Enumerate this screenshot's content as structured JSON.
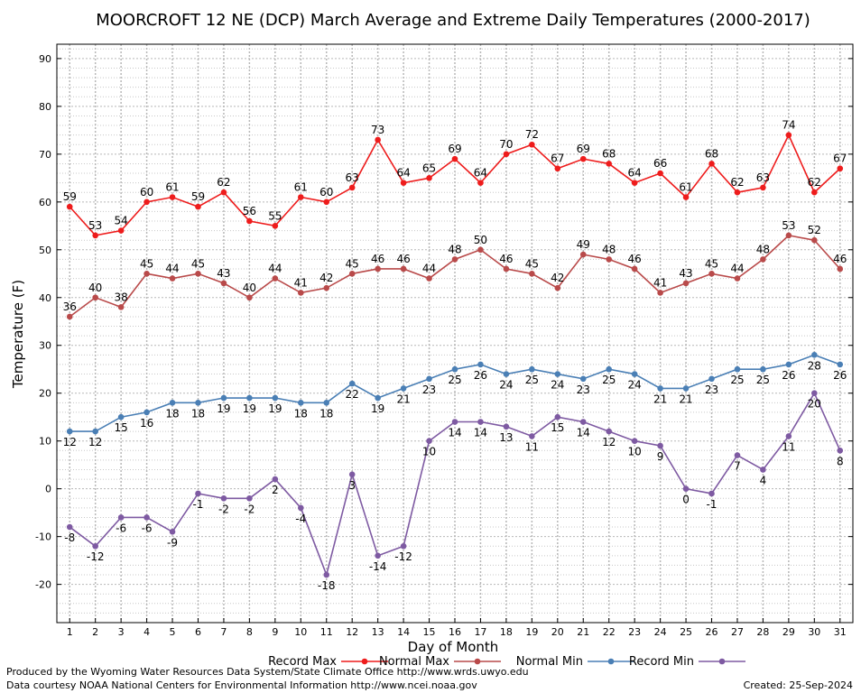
{
  "chart_data": {
    "type": "line",
    "title": "MOORCROFT 12 NE (DCP) March Average and Extreme Daily Temperatures (2000-2017)",
    "xlabel": "Day of Month",
    "ylabel": "Temperature (F)",
    "x": [
      1,
      2,
      3,
      4,
      5,
      6,
      7,
      8,
      9,
      10,
      11,
      12,
      13,
      14,
      15,
      16,
      17,
      18,
      19,
      20,
      21,
      22,
      23,
      24,
      25,
      26,
      27,
      28,
      29,
      30,
      31
    ],
    "xlim": [
      0.5,
      31.5
    ],
    "ylim": [
      -28,
      93
    ],
    "yticks": [
      -20,
      -10,
      0,
      10,
      20,
      30,
      40,
      50,
      60,
      70,
      80,
      90
    ],
    "grid": true,
    "legend_position": "bottom",
    "series": [
      {
        "name": "Record Max",
        "color": "#ee1c1c",
        "label_side": "above",
        "values": [
          59,
          53,
          54,
          60,
          61,
          59,
          62,
          56,
          55,
          61,
          60,
          63,
          73,
          64,
          65,
          69,
          64,
          70,
          72,
          67,
          69,
          68,
          64,
          66,
          61,
          68,
          62,
          63,
          74,
          62,
          67
        ]
      },
      {
        "name": "Normal Max",
        "color": "#b94a4a",
        "label_side": "above",
        "values": [
          36,
          40,
          38,
          45,
          44,
          45,
          43,
          40,
          44,
          41,
          42,
          45,
          46,
          46,
          44,
          48,
          50,
          46,
          45,
          42,
          49,
          48,
          46,
          41,
          43,
          45,
          44,
          48,
          53,
          52,
          46
        ]
      },
      {
        "name": "Normal Min",
        "color": "#4a7fb5",
        "label_side": "below",
        "values": [
          12,
          12,
          15,
          16,
          18,
          18,
          19,
          19,
          19,
          18,
          18,
          22,
          19,
          21,
          23,
          25,
          26,
          24,
          25,
          24,
          23,
          25,
          24,
          21,
          21,
          23,
          25,
          25,
          26,
          28,
          26
        ]
      },
      {
        "name": "Record Min",
        "color": "#7e5aa2",
        "label_side": "below",
        "values": [
          -8,
          -12,
          -6,
          -6,
          -9,
          -1,
          -2,
          -2,
          2,
          -4,
          -18,
          3,
          -14,
          -12,
          10,
          14,
          14,
          13,
          11,
          15,
          14,
          12,
          10,
          9,
          0,
          -1,
          7,
          4,
          11,
          20,
          8
        ]
      }
    ]
  },
  "footer": {
    "produced_by": "Produced by the Wyoming Water Resources Data System/State Climate Office http://www.wrds.uwyo.edu",
    "data_courtesy": "Data courtesy NOAA National Centers for Environmental Information http://www.ncei.noaa.gov",
    "created": "Created: 25-Sep-2024"
  }
}
